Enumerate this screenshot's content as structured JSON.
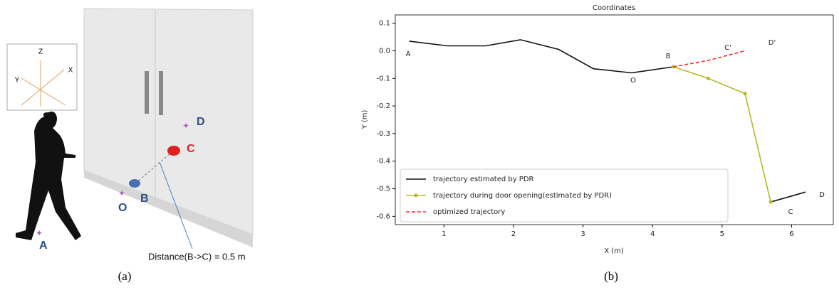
{
  "illustration": {
    "axes_labels": [
      "Z",
      "Y",
      "X"
    ],
    "points": [
      "D",
      "C",
      "B",
      "O",
      "A"
    ],
    "distance_label": "Distance(B->C) = 0.5 m",
    "panel_label": "(a)"
  },
  "chart_data": {
    "type": "line",
    "panel_label": "(b)",
    "title": "Coordinates",
    "xlabel": "X (m)",
    "ylabel": "Y (m)",
    "xlim": [
      0.3,
      6.6
    ],
    "ylim": [
      -0.63,
      0.13
    ],
    "xticks": [
      1,
      2,
      3,
      4,
      5,
      6
    ],
    "yticks": [
      0.1,
      {
        "value": 0,
        "label": "0.0"
      },
      -0.1,
      -0.2,
      -0.3,
      -0.4,
      -0.5,
      -0.6
    ],
    "series": [
      {
        "name": "trajectory estimated by PDR",
        "color": "#111111",
        "style": "solid",
        "markers": false,
        "x": [
          0.5,
          1.05,
          1.6,
          2.1,
          2.65,
          3.15,
          3.7,
          4.3,
          null,
          5.7,
          6.2
        ],
        "y": [
          0.035,
          0.018,
          0.018,
          0.04,
          0.005,
          -0.065,
          -0.08,
          -0.058,
          null,
          -0.548,
          -0.512
        ]
      },
      {
        "name": "trajectory during door opening(estimated by PDR)",
        "color": "#b5b822",
        "style": "solid",
        "markers": true,
        "x": [
          4.3,
          4.8,
          5.33,
          5.7
        ],
        "y": [
          -0.058,
          -0.1,
          -0.155,
          -0.548
        ]
      },
      {
        "name": "optimized trajectory",
        "color": "#ff2a2a",
        "style": "dashed",
        "markers": false,
        "x": [
          4.3,
          4.8,
          5.33
        ],
        "y": [
          -0.058,
          -0.035,
          0.0
        ]
      }
    ],
    "annotations": [
      "A",
      "B",
      "O",
      "C'",
      "D'",
      "C",
      "D"
    ],
    "legend": "lower left"
  }
}
